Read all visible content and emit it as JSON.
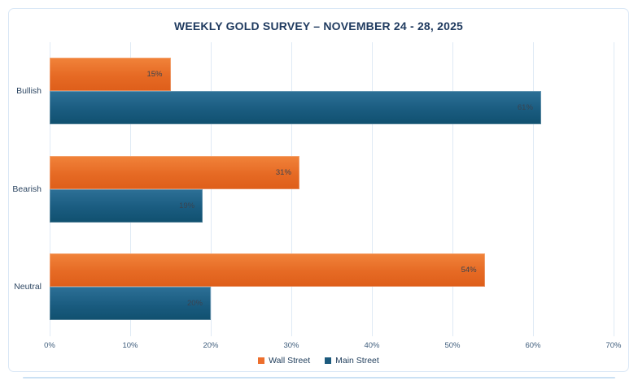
{
  "chart_data": {
    "type": "bar",
    "orientation": "horizontal",
    "title": "WEEKLY GOLD SURVEY – NOVEMBER 24 - 28, 2025",
    "categories": [
      "Bullish",
      "Bearish",
      "Neutral"
    ],
    "series": [
      {
        "name": "Wall Street",
        "values": [
          15,
          31,
          54
        ],
        "legend_color": "#ed6f2d"
      },
      {
        "name": "Main Street",
        "values": [
          61,
          19,
          20
        ],
        "legend_color": "#1c5a7d"
      }
    ],
    "value_suffix": "%",
    "data_labels": [
      "15%",
      "31%",
      "54%",
      "61%",
      "19%",
      "20%"
    ],
    "xlim": [
      0,
      70
    ],
    "x_ticks": [
      "0%",
      "10%",
      "20%",
      "30%",
      "40%",
      "50%",
      "60%",
      "70%"
    ],
    "grid": true,
    "legend_position": "bottom",
    "colors": {
      "wall_street_orange": "#e66a24",
      "main_street_blue": "#1a5c80",
      "title_text": "#1f3a5f",
      "gridline": "#dfeaf5",
      "card_border": "#d9e7f6",
      "axis_text": "#3f5d7c"
    }
  }
}
